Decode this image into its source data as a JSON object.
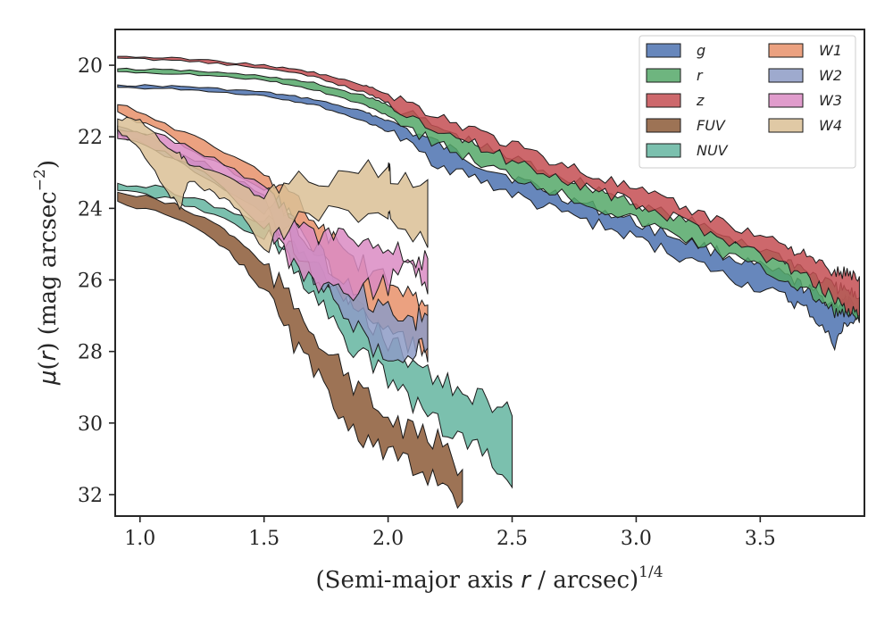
{
  "chart_data": {
    "type": "area",
    "title": "",
    "ylim": [
      19,
      32.6
    ],
    "xlim": [
      0.9,
      3.92
    ],
    "y_inverted": true,
    "grid": false,
    "legend_placement": "top-right",
    "legend_columns": 2,
    "xticks": [
      "1.0",
      "1.5",
      "2.0",
      "2.5",
      "3.0",
      "3.5"
    ],
    "xtick_values": [
      1.0,
      1.5,
      2.0,
      2.5,
      3.0,
      3.5
    ],
    "yticks": [
      "20",
      "22",
      "24",
      "26",
      "28",
      "30",
      "32"
    ],
    "ytick_values": [
      20,
      22,
      24,
      26,
      28,
      30,
      32
    ],
    "series": [
      {
        "name": "g",
        "color": "#4c72b0",
        "x": [
          0.91,
          1.2,
          1.5,
          1.7,
          1.9,
          2.0,
          2.2,
          2.4,
          2.6,
          2.8,
          3.0,
          3.2,
          3.4,
          3.6,
          3.7,
          3.8,
          3.85,
          3.9
        ],
        "y1": [
          20.55,
          20.6,
          20.75,
          20.95,
          21.3,
          21.55,
          22.2,
          22.85,
          23.4,
          23.9,
          24.4,
          24.9,
          25.4,
          25.9,
          26.3,
          26.7,
          26.6,
          26.9
        ],
        "y2": [
          20.62,
          20.68,
          20.85,
          21.1,
          21.55,
          21.85,
          22.75,
          23.3,
          23.9,
          24.35,
          24.85,
          25.4,
          26.0,
          26.5,
          26.9,
          27.8,
          27.2,
          27.2
        ]
      },
      {
        "name": "r",
        "color": "#55a868",
        "x": [
          0.91,
          1.2,
          1.5,
          1.7,
          1.9,
          2.0,
          2.2,
          2.4,
          2.6,
          2.8,
          3.0,
          3.2,
          3.4,
          3.6,
          3.7,
          3.8,
          3.85,
          3.9
        ],
        "y1": [
          20.1,
          20.15,
          20.3,
          20.5,
          20.85,
          21.1,
          21.75,
          22.35,
          22.85,
          23.35,
          23.85,
          24.35,
          24.85,
          25.4,
          25.8,
          26.2,
          26.3,
          26.5
        ],
        "y2": [
          20.18,
          20.25,
          20.42,
          20.68,
          21.1,
          21.4,
          22.2,
          22.85,
          23.35,
          23.85,
          24.35,
          24.85,
          25.4,
          26.0,
          26.4,
          26.9,
          27.0,
          27.1
        ]
      },
      {
        "name": "z",
        "color": "#c44e52",
        "x": [
          0.91,
          1.2,
          1.5,
          1.7,
          1.9,
          2.0,
          2.2,
          2.4,
          2.6,
          2.8,
          3.0,
          3.2,
          3.4,
          3.6,
          3.7,
          3.8,
          3.85,
          3.9
        ],
        "y1": [
          19.75,
          19.82,
          20.0,
          20.2,
          20.55,
          20.8,
          21.4,
          21.95,
          22.5,
          23.0,
          23.5,
          24.0,
          24.5,
          25.0,
          25.4,
          25.8,
          25.8,
          25.9
        ],
        "y2": [
          19.8,
          19.88,
          20.08,
          20.32,
          20.75,
          21.05,
          21.75,
          22.4,
          22.9,
          23.4,
          23.9,
          24.4,
          24.95,
          25.6,
          26.0,
          26.5,
          26.8,
          27.0
        ]
      },
      {
        "name": "FUV",
        "color": "#8c5a37",
        "x": [
          0.91,
          1.1,
          1.3,
          1.4,
          1.5,
          1.6,
          1.7,
          1.8,
          1.9,
          2.0,
          2.1,
          2.2,
          2.3
        ],
        "y1": [
          23.55,
          23.8,
          24.4,
          24.9,
          25.6,
          26.5,
          27.4,
          28.4,
          29.2,
          29.9,
          30.3,
          30.5,
          31.3
        ],
        "y2": [
          23.8,
          24.15,
          24.9,
          25.5,
          26.3,
          27.5,
          28.6,
          29.6,
          30.4,
          30.9,
          31.3,
          31.5,
          32.2
        ]
      },
      {
        "name": "NUV",
        "color": "#64b5a0",
        "x": [
          0.91,
          1.1,
          1.3,
          1.5,
          1.6,
          1.7,
          1.8,
          1.9,
          2.0,
          2.1,
          2.2,
          2.3,
          2.4,
          2.5
        ],
        "y1": [
          23.3,
          23.45,
          23.9,
          24.4,
          25.0,
          25.6,
          26.3,
          27.0,
          27.7,
          28.3,
          28.8,
          29.0,
          29.4,
          29.8
        ],
        "y2": [
          23.5,
          23.7,
          24.2,
          24.8,
          25.5,
          26.3,
          27.3,
          28.2,
          28.8,
          29.4,
          30.0,
          30.4,
          30.9,
          31.8
        ]
      },
      {
        "name": "W1",
        "color": "#e8916a",
        "x": [
          0.91,
          1.1,
          1.3,
          1.5,
          1.6,
          1.7,
          1.8,
          1.9,
          2.0,
          2.1,
          2.16
        ],
        "y1": [
          21.1,
          21.6,
          22.3,
          23.0,
          23.6,
          24.3,
          25.0,
          25.6,
          26.1,
          26.5,
          26.7
        ],
        "y2": [
          21.3,
          21.9,
          22.7,
          23.5,
          24.2,
          25.2,
          26.2,
          27.0,
          27.4,
          27.8,
          28.3
        ]
      },
      {
        "name": "W2",
        "color": "#8d9bc6",
        "x": [
          0.91,
          1.1,
          1.3,
          1.5,
          1.6,
          1.7,
          1.8,
          1.9,
          2.0,
          2.1,
          2.16
        ],
        "y1": [
          21.7,
          22.2,
          22.9,
          23.6,
          24.2,
          25.0,
          25.8,
          26.4,
          26.8,
          27.1,
          27.0
        ],
        "y2": [
          21.9,
          22.5,
          23.3,
          24.1,
          24.8,
          25.8,
          26.8,
          27.6,
          28.5,
          28.0,
          27.9
        ]
      },
      {
        "name": "W3",
        "color": "#da8bc3",
        "x": [
          0.91,
          1.1,
          1.3,
          1.5,
          1.6,
          1.7,
          1.8,
          1.9,
          2.0,
          2.1,
          2.16
        ],
        "y1": [
          21.8,
          22.0,
          22.6,
          23.4,
          24.3,
          24.9,
          24.8,
          25.2,
          24.9,
          25.5,
          25.4
        ],
        "y2": [
          22.05,
          22.4,
          23.2,
          24.6,
          25.4,
          26.1,
          26.4,
          26.3,
          26.1,
          25.6,
          26.4
        ]
      },
      {
        "name": "W4",
        "color": "#dbc095",
        "x": [
          0.91,
          1.0,
          1.1,
          1.16,
          1.2,
          1.3,
          1.4,
          1.5,
          1.6,
          1.8,
          2.0,
          2.01,
          2.16
        ],
        "y1": [
          21.5,
          21.5,
          22.2,
          22.5,
          22.8,
          23.0,
          23.3,
          23.8,
          23.3,
          23.0,
          22.8,
          23.2,
          23.2
        ],
        "y2": [
          21.8,
          22.3,
          23.4,
          24.0,
          23.2,
          23.6,
          24.0,
          25.2,
          24.5,
          24.1,
          24.1,
          24.5,
          25.1
        ]
      }
    ]
  },
  "axes": {
    "xlabel_pre": "(Semi-major axis ",
    "xlabel_var": "r",
    "xlabel_post": " / arcsec)",
    "xlabel_sup": "1/4",
    "ylabel_mu": "μ",
    "ylabel_paren_open": "(",
    "ylabel_var": "r",
    "ylabel_paren_close": ")",
    "ylabel_unit": " (mag arcsec",
    "ylabel_sup": "−2",
    "ylabel_end": ")"
  }
}
